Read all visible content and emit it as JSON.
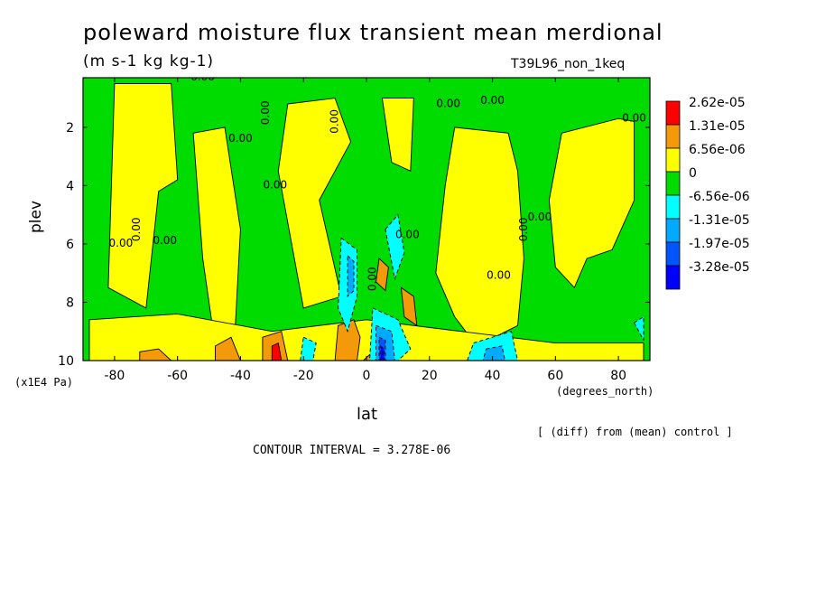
{
  "chart_data": {
    "type": "heatmap",
    "title": "poleward moisture flux transient mean merdional",
    "subtitle": "(m s-1 kg kg-1)",
    "run_label": "T39L96_non_1keq",
    "xlabel": "lat",
    "x_units": "(degrees_north)",
    "ylabel": "plev",
    "y_units": "(x1E4 Pa)",
    "xlim": [
      -90,
      90
    ],
    "ylim": [
      10,
      0.3
    ],
    "x_ticks": [
      "-80",
      "-60",
      "-40",
      "-20",
      "0",
      "20",
      "40",
      "60",
      "80"
    ],
    "y_ticks": [
      "2",
      "4",
      "6",
      "8",
      "10"
    ],
    "footnote": "[ (diff) from (mean) control ]",
    "contour_interval": "CONTOUR INTERVAL = 3.278E-06",
    "zero_label": "0.00",
    "legend": {
      "placement": "right",
      "levels": [
        {
          "label": "2.62e-05",
          "color": "#ff0000"
        },
        {
          "label": "1.31e-05",
          "color": "#f49a0a"
        },
        {
          "label": "6.56e-06",
          "color": "#ffff00"
        },
        {
          "label": "0",
          "color": "#00dc00"
        },
        {
          "label": "-6.56e-06",
          "color": "#00ffff"
        },
        {
          "label": "-1.31e-05",
          "color": "#00aaff"
        },
        {
          "label": "-1.97e-05",
          "color": "#0055ff"
        },
        {
          "label": "-3.28e-05",
          "color": "#0000ff"
        }
      ]
    },
    "regions": [
      {
        "level": "positive",
        "color": "#ffff00",
        "points": [
          [
            -25,
            1.2
          ],
          [
            -10,
            1.0
          ],
          [
            -5,
            2.5
          ],
          [
            -15,
            4.5
          ],
          [
            -8,
            7.8
          ],
          [
            -20,
            8.2
          ],
          [
            -28,
            3.5
          ]
        ]
      },
      {
        "level": "positive",
        "color": "#ffff00",
        "points": [
          [
            28,
            2.0
          ],
          [
            45,
            2.2
          ],
          [
            48,
            3.5
          ],
          [
            50,
            6.5
          ],
          [
            48,
            8.8
          ],
          [
            35,
            9.5
          ],
          [
            28,
            8.5
          ],
          [
            22,
            7.0
          ],
          [
            25,
            4.0
          ]
        ]
      },
      {
        "level": "positive",
        "color": "#ffff00",
        "points": [
          [
            -80,
            0.5
          ],
          [
            -62,
            0.5
          ],
          [
            -60,
            3.8
          ],
          [
            -66,
            4.2
          ],
          [
            -70,
            8.2
          ],
          [
            -82,
            7.5
          ]
        ]
      },
      {
        "level": "positive",
        "color": "#ffff00",
        "points": [
          [
            -55,
            2.2
          ],
          [
            -45,
            2.0
          ],
          [
            -40,
            5.5
          ],
          [
            -42,
            9.5
          ],
          [
            -48,
            9.5
          ],
          [
            -52,
            6.5
          ]
        ]
      },
      {
        "level": "positive",
        "color": "#ffff00",
        "points": [
          [
            62,
            2.2
          ],
          [
            80,
            1.7
          ],
          [
            85,
            1.8
          ],
          [
            85,
            4.5
          ],
          [
            78,
            6.2
          ],
          [
            70,
            6.5
          ],
          [
            66,
            7.5
          ],
          [
            60,
            6.8
          ],
          [
            58,
            4.5
          ]
        ]
      },
      {
        "level": "positive",
        "color": "#ffff00",
        "points": [
          [
            -88,
            8.6
          ],
          [
            -60,
            8.4
          ],
          [
            -30,
            9.0
          ],
          [
            0,
            8.6
          ],
          [
            30,
            9.0
          ],
          [
            60,
            9.4
          ],
          [
            88,
            9.4
          ],
          [
            88,
            10
          ],
          [
            -88,
            10
          ]
        ]
      },
      {
        "level": "positive",
        "color": "#ffff00",
        "points": [
          [
            5,
            1.0
          ],
          [
            15,
            1.0
          ],
          [
            14,
            3.5
          ],
          [
            8,
            3.2
          ]
        ]
      },
      {
        "level": "1.31e-05",
        "color": "#f49a0a",
        "points": [
          [
            -9,
            8.8
          ],
          [
            -4,
            8.6
          ],
          [
            -2,
            9.2
          ],
          [
            -3,
            10
          ],
          [
            -10,
            10
          ]
        ]
      },
      {
        "level": "1.31e-05",
        "color": "#f49a0a",
        "points": [
          [
            -33,
            9.2
          ],
          [
            -27,
            9.0
          ],
          [
            -25,
            10
          ],
          [
            -33,
            10
          ]
        ]
      },
      {
        "level": "1.31e-05",
        "color": "#f49a0a",
        "points": [
          [
            -48,
            9.5
          ],
          [
            -43,
            9.2
          ],
          [
            -40,
            10
          ],
          [
            -48,
            10
          ]
        ]
      },
      {
        "level": "1.31e-05",
        "color": "#f49a0a",
        "points": [
          [
            -72,
            9.7
          ],
          [
            -66,
            9.6
          ],
          [
            -62,
            10
          ],
          [
            -72,
            10
          ]
        ]
      },
      {
        "level": "1.31e-05",
        "color": "#f49a0a",
        "points": [
          [
            11,
            7.5
          ],
          [
            15,
            7.8
          ],
          [
            16,
            8.8
          ],
          [
            12,
            8.5
          ]
        ]
      },
      {
        "level": "1.31e-05",
        "color": "#f49a0a",
        "points": [
          [
            4,
            6.5
          ],
          [
            7,
            6.8
          ],
          [
            6,
            7.6
          ],
          [
            3,
            7.3
          ]
        ]
      },
      {
        "level": "1.31e-05",
        "color": "#f49a0a",
        "points": [
          [
            -1,
            10
          ],
          [
            2,
            9.7
          ],
          [
            3,
            10
          ]
        ]
      },
      {
        "level": "2.62e-05",
        "color": "#ff0000",
        "points": [
          [
            -30,
            9.5
          ],
          [
            -28,
            9.4
          ],
          [
            -27,
            10
          ],
          [
            -30,
            10
          ]
        ]
      },
      {
        "level": "-6.56e-06",
        "color": "#00ffff",
        "points": [
          [
            -8,
            5.8
          ],
          [
            -3,
            6.2
          ],
          [
            -3,
            7.8
          ],
          [
            -6,
            9.0
          ],
          [
            -9,
            8.2
          ]
        ]
      },
      {
        "level": "-6.56e-06",
        "color": "#00ffff",
        "points": [
          [
            6,
            5.5
          ],
          [
            10,
            5.0
          ],
          [
            12,
            6.3
          ],
          [
            9,
            7.2
          ]
        ]
      },
      {
        "level": "-6.56e-06",
        "color": "#00ffff",
        "points": [
          [
            2,
            8.2
          ],
          [
            10,
            8.6
          ],
          [
            14,
            9.6
          ],
          [
            10,
            10
          ],
          [
            1,
            10
          ]
        ]
      },
      {
        "level": "-6.56e-06",
        "color": "#00ffff",
        "points": [
          [
            34,
            9.4
          ],
          [
            46,
            9.0
          ],
          [
            48,
            10
          ],
          [
            32,
            10
          ]
        ]
      },
      {
        "level": "-6.56e-06",
        "color": "#00ffff",
        "points": [
          [
            -20,
            9.2
          ],
          [
            -16,
            9.4
          ],
          [
            -17,
            10
          ],
          [
            -21,
            10
          ]
        ]
      },
      {
        "level": "-6.56e-06",
        "color": "#00ffff",
        "points": [
          [
            85,
            8.7
          ],
          [
            88,
            8.5
          ],
          [
            88,
            9.3
          ]
        ]
      },
      {
        "level": "-1.31e-05",
        "color": "#00aaff",
        "points": [
          [
            -6,
            6.4
          ],
          [
            -4,
            6.6
          ],
          [
            -4,
            7.6
          ],
          [
            -6,
            7.8
          ]
        ]
      },
      {
        "level": "-1.31e-05",
        "color": "#00aaff",
        "points": [
          [
            3,
            8.8
          ],
          [
            8,
            9.0
          ],
          [
            9,
            10
          ],
          [
            3,
            10
          ]
        ]
      },
      {
        "level": "-1.31e-05",
        "color": "#00aaff",
        "points": [
          [
            38,
            9.6
          ],
          [
            43,
            9.5
          ],
          [
            44,
            10
          ],
          [
            37,
            10
          ]
        ]
      },
      {
        "level": "-1.97e-05",
        "color": "#0055ff",
        "points": [
          [
            4,
            9.2
          ],
          [
            6,
            9.3
          ],
          [
            6,
            10
          ],
          [
            4,
            10
          ]
        ]
      },
      {
        "level": "-3.28e-05",
        "color": "#0000ff",
        "points": [
          [
            4.5,
            9.5
          ],
          [
            5.5,
            9.6
          ],
          [
            5.5,
            10
          ],
          [
            4.5,
            10
          ]
        ]
      }
    ],
    "zero_labels": [
      [
        -52,
        0.4
      ],
      [
        -31,
        1.5
      ],
      [
        -40,
        2.5
      ],
      [
        -78,
        6.1
      ],
      [
        -72,
        5.5
      ],
      [
        -64,
        6.0
      ],
      [
        -29,
        4.1
      ],
      [
        -9,
        1.8
      ],
      [
        26,
        1.3
      ],
      [
        40,
        1.2
      ],
      [
        3,
        7.2
      ],
      [
        13,
        5.8
      ],
      [
        42,
        7.2
      ],
      [
        51,
        5.5
      ],
      [
        55,
        5.2
      ],
      [
        85,
        1.8
      ]
    ]
  }
}
